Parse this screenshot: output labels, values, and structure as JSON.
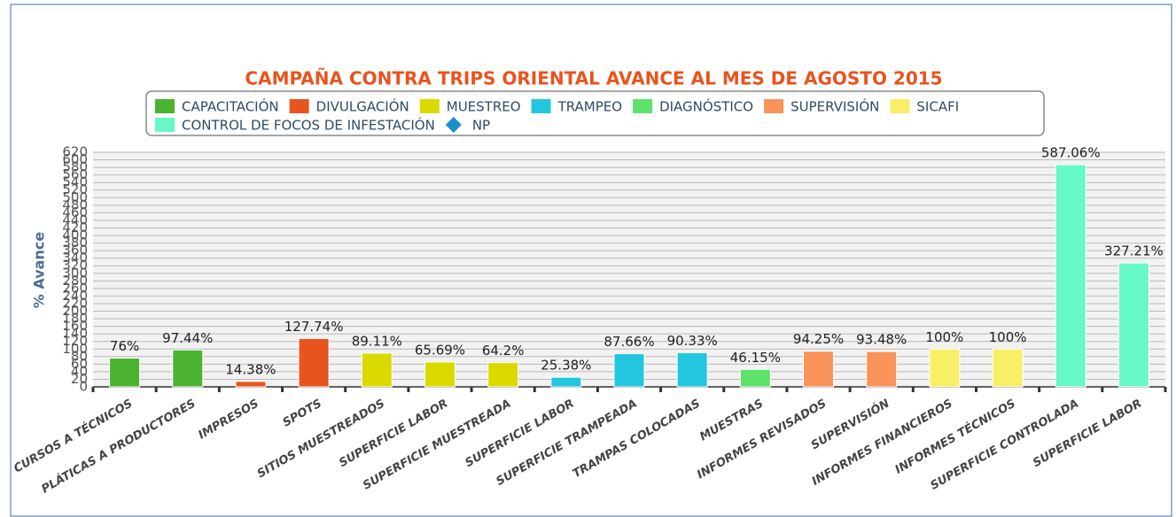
{
  "chart_data": {
    "type": "bar",
    "title": "CAMPAÑA CONTRA TRIPS ORIENTAL AVANCE AL MES DE AGOSTO 2015",
    "y_label": "% Avance",
    "categories": [
      "CURSOS A TÉCNICOS",
      "PLÁTICAS A PRODUCTORES",
      "IMPRESOS",
      "SPOTS",
      "SITIOS MUESTREADOS",
      "SUPERFICIE LABOR",
      "SUPERFICIE MUESTREADA",
      "SUPERFICIE LABOR",
      "SUPERFICIE TRAMPEADA",
      "TRAMPAS COLOCADAS",
      "MUESTRAS",
      "INFORMES REVISADOS",
      "SUPERVISIÓN",
      "INFORMES FINANCIEROS",
      "INFORMES TÉCNICOS",
      "SUPERFICIE CONTROLADA",
      "SUPERFICIE LABOR"
    ],
    "series": [
      {
        "name": "CAPACITACIÓN",
        "color": "#4cb231",
        "values": [
          76,
          97.44,
          null,
          null,
          null,
          null,
          null,
          null,
          null,
          null,
          null,
          null,
          null,
          null,
          null,
          null,
          null
        ],
        "value_labels": [
          "76%",
          "97.44%",
          null,
          null,
          null,
          null,
          null,
          null,
          null,
          null,
          null,
          null,
          null,
          null,
          null,
          null,
          null
        ]
      },
      {
        "name": "DIVULGACIÓN",
        "color": "#e8541e",
        "values": [
          null,
          null,
          14.38,
          127.74,
          null,
          null,
          null,
          null,
          null,
          null,
          null,
          null,
          null,
          null,
          null,
          null,
          null
        ],
        "value_labels": [
          null,
          null,
          "14.38%",
          "127.74%",
          null,
          null,
          null,
          null,
          null,
          null,
          null,
          null,
          null,
          null,
          null,
          null,
          null
        ]
      },
      {
        "name": "MUESTREO",
        "color": "#dada00",
        "values": [
          null,
          null,
          null,
          null,
          89.11,
          65.69,
          64.2,
          null,
          null,
          null,
          null,
          null,
          null,
          null,
          null,
          null,
          null
        ],
        "value_labels": [
          null,
          null,
          null,
          null,
          "89.11%",
          "65.69%",
          "64.2%",
          null,
          null,
          null,
          null,
          null,
          null,
          null,
          null,
          null,
          null
        ]
      },
      {
        "name": "TRAMPEO",
        "color": "#22c6df",
        "values": [
          null,
          null,
          null,
          null,
          null,
          null,
          null,
          25.38,
          87.66,
          90.33,
          null,
          null,
          null,
          null,
          null,
          null,
          null
        ],
        "value_labels": [
          null,
          null,
          null,
          null,
          null,
          null,
          null,
          "25.38%",
          "87.66%",
          "90.33%",
          null,
          null,
          null,
          null,
          null,
          null,
          null
        ]
      },
      {
        "name": "DIAGNÓSTICO",
        "color": "#5ee26c",
        "values": [
          null,
          null,
          null,
          null,
          null,
          null,
          null,
          null,
          null,
          null,
          46.15,
          null,
          null,
          null,
          null,
          null,
          null
        ],
        "value_labels": [
          null,
          null,
          null,
          null,
          null,
          null,
          null,
          null,
          null,
          null,
          "46.15%",
          null,
          null,
          null,
          null,
          null,
          null
        ]
      },
      {
        "name": "SUPERVISIÓN",
        "color": "#f8935a",
        "values": [
          null,
          null,
          null,
          null,
          null,
          null,
          null,
          null,
          null,
          null,
          null,
          94.25,
          93.48,
          null,
          null,
          null,
          null
        ],
        "value_labels": [
          null,
          null,
          null,
          null,
          null,
          null,
          null,
          null,
          null,
          null,
          null,
          "94.25%",
          "93.48%",
          null,
          null,
          null,
          null
        ]
      },
      {
        "name": "SICAFI",
        "color": "#f8ef66",
        "values": [
          null,
          null,
          null,
          null,
          null,
          null,
          null,
          null,
          null,
          null,
          null,
          null,
          null,
          100,
          100,
          null,
          null
        ],
        "value_labels": [
          null,
          null,
          null,
          null,
          null,
          null,
          null,
          null,
          null,
          null,
          null,
          null,
          null,
          "100%",
          "100%",
          null,
          null
        ]
      },
      {
        "name": "CONTROL DE FOCOS DE INFESTACIÓN",
        "color": "#66f8c6",
        "values": [
          null,
          null,
          null,
          null,
          null,
          null,
          null,
          null,
          null,
          null,
          null,
          null,
          null,
          null,
          null,
          587.06,
          327.21
        ],
        "value_labels": [
          null,
          null,
          null,
          null,
          null,
          null,
          null,
          null,
          null,
          null,
          null,
          null,
          null,
          null,
          null,
          "587.06%",
          "327.21%"
        ]
      },
      {
        "name": "NP",
        "color": "#1b8ecb",
        "marker": "diamond",
        "values": [
          null,
          null,
          null,
          null,
          null,
          null,
          null,
          null,
          null,
          null,
          null,
          null,
          null,
          null,
          null,
          null,
          null
        ]
      }
    ],
    "ylim": [
      0,
      620
    ],
    "yticks": [
      0,
      20,
      40,
      60,
      80,
      100,
      120,
      140,
      160,
      180,
      200,
      220,
      240,
      260,
      280,
      300,
      320,
      340,
      360,
      380,
      400,
      420,
      440,
      460,
      480,
      500,
      520,
      540,
      560,
      580,
      600,
      620
    ],
    "grid": true
  }
}
